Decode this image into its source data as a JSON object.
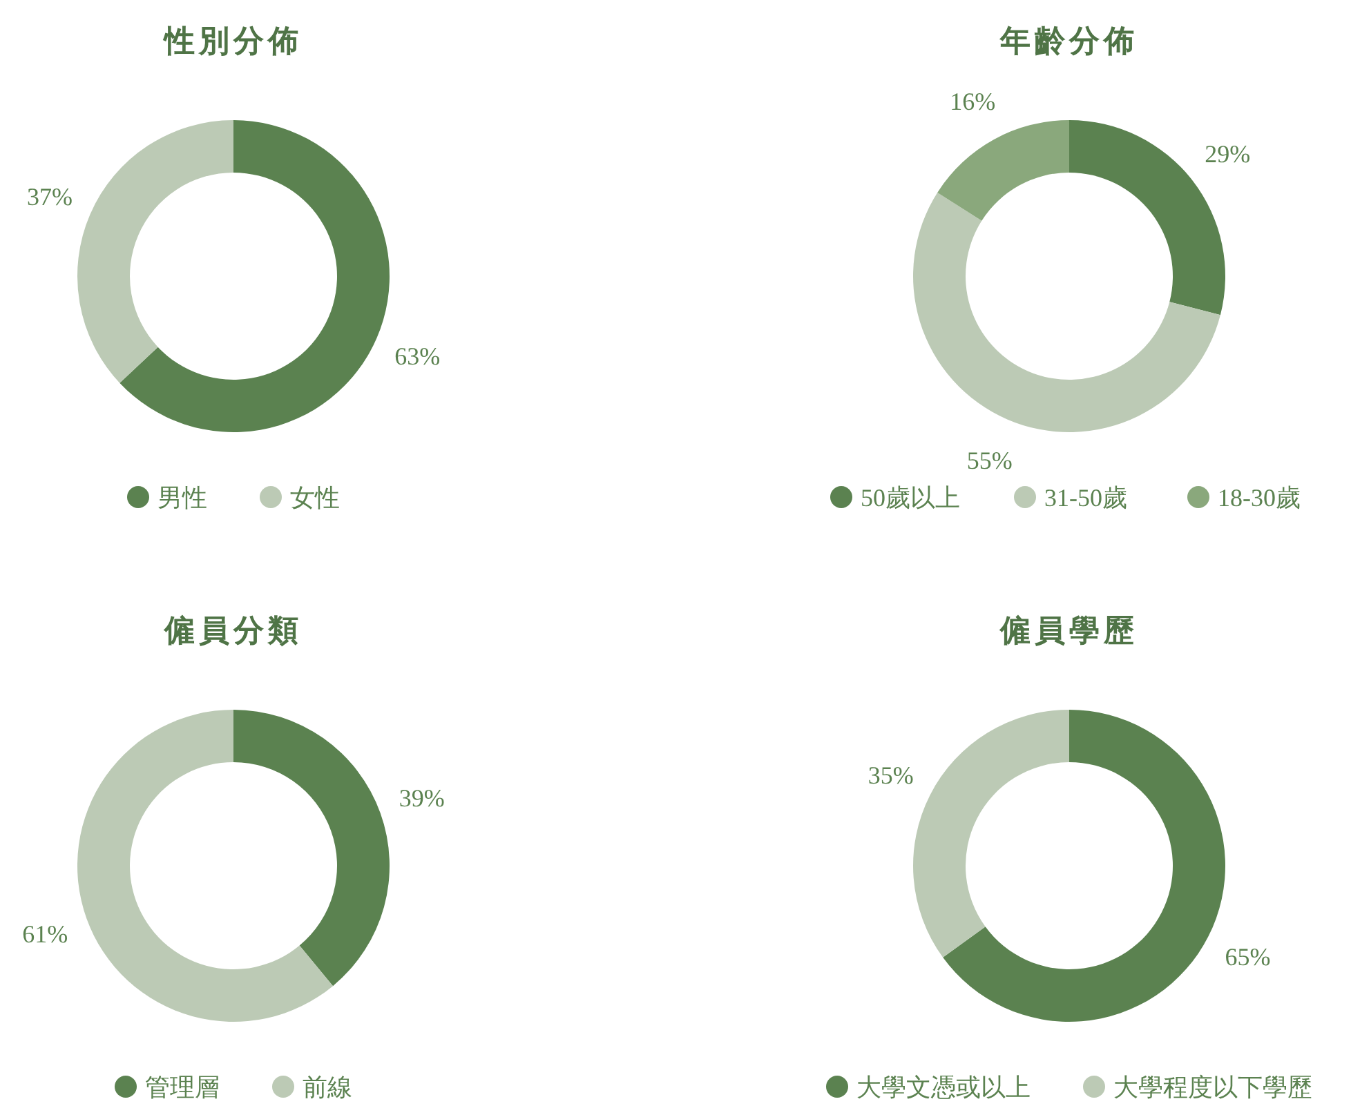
{
  "chart_data": [
    {
      "type": "donut",
      "title": "性別分佈",
      "categories": [
        "男性",
        "女性"
      ],
      "values": [
        63,
        37
      ],
      "colors": [
        "#5b8250",
        "#bccab5"
      ],
      "value_labels": [
        "63%",
        "37%"
      ],
      "legend": "bottom"
    },
    {
      "type": "donut",
      "title": "年齡分佈",
      "categories": [
        "50歲以上",
        "31-50歲",
        "18-30歲"
      ],
      "values": [
        29,
        55,
        16
      ],
      "colors": [
        "#5b8250",
        "#bccab5",
        "#8aa87c"
      ],
      "value_labels": [
        "29%",
        "55%",
        "16%"
      ],
      "legend": "bottom"
    },
    {
      "type": "donut",
      "title": "僱員分類",
      "categories": [
        "管理層",
        "前線"
      ],
      "values": [
        39,
        61
      ],
      "colors": [
        "#5b8250",
        "#bccab5"
      ],
      "value_labels": [
        "39%",
        "61%"
      ],
      "legend": "bottom"
    },
    {
      "type": "donut",
      "title": "僱員學歷",
      "categories": [
        "大學文憑或以上",
        "大學程度以下學歷"
      ],
      "values": [
        65,
        35
      ],
      "colors": [
        "#5b8250",
        "#bccab5"
      ],
      "value_labels": [
        "65%",
        "35%"
      ],
      "legend": "bottom"
    }
  ]
}
